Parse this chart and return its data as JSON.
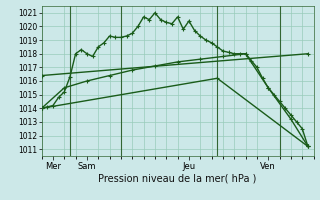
{
  "title": "Pression niveau de la mer( hPa )",
  "bg_color": "#cce8e8",
  "grid_color": "#99ccbb",
  "line_color": "#1a5c1a",
  "ylim": [
    1010.5,
    1021.5
  ],
  "yticks": [
    1011,
    1012,
    1013,
    1014,
    1015,
    1016,
    1017,
    1018,
    1019,
    1020,
    1021
  ],
  "xlim": [
    0,
    24
  ],
  "xtick_positions": [
    1,
    4,
    13,
    20
  ],
  "xtick_labels": [
    "Mer",
    "Sam",
    "Jeu",
    "Ven"
  ],
  "vlines": [
    2.5,
    7,
    15.5,
    21
  ],
  "series1_x": [
    0,
    0.5,
    1,
    1.5,
    2,
    2.5,
    3,
    3.5,
    4,
    4.5,
    5,
    5.5,
    6,
    6.5,
    7,
    7.5,
    8,
    8.5,
    9,
    9.5,
    10,
    10.5,
    11,
    11.5,
    12,
    12.5,
    13,
    13.5,
    14,
    14.5,
    15,
    15.5,
    16,
    16.5,
    17,
    17.5,
    18,
    18.5,
    19,
    19.5,
    20,
    20.5,
    21,
    21.5,
    22,
    22.5,
    23,
    23.5
  ],
  "series1_y": [
    1014.0,
    1014.1,
    1014.2,
    1014.8,
    1015.2,
    1016.3,
    1018.0,
    1018.3,
    1018.0,
    1017.8,
    1018.5,
    1018.8,
    1019.3,
    1019.2,
    1019.2,
    1019.3,
    1019.5,
    1020.0,
    1020.7,
    1020.5,
    1021.0,
    1020.5,
    1020.3,
    1020.2,
    1020.7,
    1019.8,
    1020.4,
    1019.7,
    1019.3,
    1019.0,
    1018.8,
    1018.5,
    1018.2,
    1018.1,
    1018.0,
    1018.0,
    1018.0,
    1017.5,
    1017.0,
    1016.2,
    1015.5,
    1015.0,
    1014.5,
    1014.0,
    1013.5,
    1013.0,
    1012.5,
    1011.2
  ],
  "series2_x": [
    0,
    2,
    4,
    6,
    8,
    10,
    12,
    14,
    16,
    18,
    20,
    22,
    23.5
  ],
  "series2_y": [
    1014.0,
    1015.5,
    1016.0,
    1016.4,
    1016.8,
    1017.1,
    1017.4,
    1017.6,
    1017.8,
    1018.0,
    1015.5,
    1013.2,
    1011.2
  ],
  "series3_x": [
    0,
    23.5
  ],
  "series3_y": [
    1016.4,
    1018.0
  ],
  "series4_x": [
    0,
    15.5,
    23.5
  ],
  "series4_y": [
    1014.0,
    1016.2,
    1011.2
  ]
}
